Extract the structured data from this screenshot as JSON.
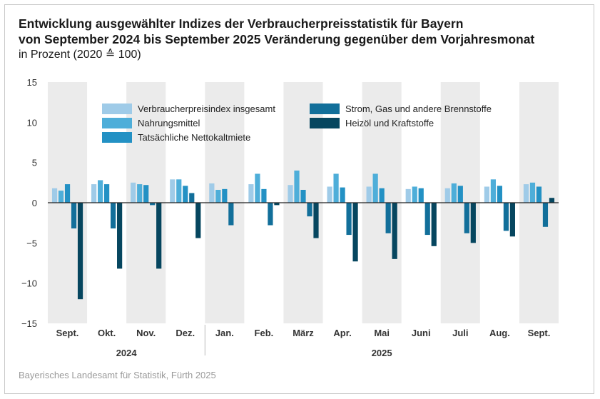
{
  "title_line1": "Entwicklung ausgewählter Indizes der Verbraucherpreisstatistik für Bayern",
  "title_line2": "von September 2024 bis September 2025 Veränderung gegenüber dem Vorjahresmonat",
  "subtitle": "in Prozent (2020 ≙ 100)",
  "source": "Bayerisches Landesamt für Statistik, Fürth 2025",
  "chart_data": {
    "type": "bar",
    "categories": [
      "Sept.",
      "Okt.",
      "Nov.",
      "Dez.",
      "Jan.",
      "Feb.",
      "März",
      "Apr.",
      "Mai",
      "Juni",
      "Juli",
      "Aug.",
      "Sept."
    ],
    "year_groups": [
      {
        "label": "2024",
        "from": 0,
        "to": 3
      },
      {
        "label": "2025",
        "from": 4,
        "to": 12
      }
    ],
    "series": [
      {
        "name": "Verbraucherpreisindex insgesamt",
        "color": "#9fcbe8",
        "values": [
          1.8,
          2.3,
          2.5,
          2.9,
          2.4,
          2.3,
          2.2,
          2.0,
          2.0,
          1.7,
          1.8,
          2.0,
          2.3
        ]
      },
      {
        "name": "Nahrungsmittel",
        "color": "#4eaed9",
        "values": [
          1.5,
          2.8,
          2.3,
          2.9,
          1.6,
          3.6,
          4.0,
          3.6,
          3.6,
          2.0,
          2.4,
          2.9,
          2.5
        ]
      },
      {
        "name": "Tatsächliche Nettokaltmiete",
        "color": "#2391c4",
        "values": [
          2.3,
          2.3,
          2.2,
          2.1,
          1.7,
          1.7,
          1.6,
          1.9,
          1.8,
          1.8,
          2.1,
          2.1,
          2.0
        ]
      },
      {
        "name": "Strom, Gas und andere Brennstoffe",
        "color": "#126f9a",
        "values": [
          -3.2,
          -3.2,
          -0.3,
          1.2,
          -2.8,
          -2.8,
          -1.7,
          -4.0,
          -3.8,
          -4.0,
          -3.8,
          -3.5,
          -3.0
        ]
      },
      {
        "name": "Heizöl und Kraftstoffe",
        "color": "#06465f",
        "values": [
          -12.0,
          -8.2,
          -8.2,
          -4.4,
          0.0,
          -0.3,
          -4.4,
          -7.3,
          -7.0,
          -5.4,
          -5.0,
          -4.2,
          0.6
        ]
      }
    ],
    "ylim": [
      -15,
      15
    ],
    "yticks": [
      15,
      10,
      5,
      0,
      -5,
      -10,
      -15
    ],
    "ytick_labels": [
      "15",
      "10",
      "5",
      "0",
      "−5",
      "−10",
      "−15"
    ],
    "legend_position": "top-center",
    "alternating_shading": true
  }
}
